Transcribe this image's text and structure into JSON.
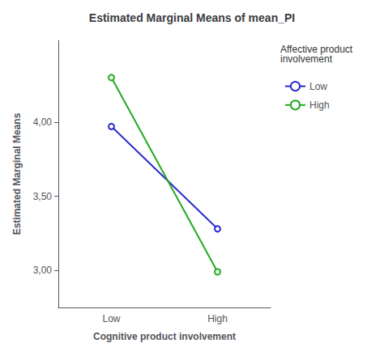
{
  "chart_data": {
    "type": "line",
    "title": "Estimated Marginal Means of mean_PI",
    "x_label": "Cognitive product involvement",
    "y_label": "Estimated Marginal Means",
    "categories": [
      "Low",
      "High"
    ],
    "series": [
      {
        "name": "Low",
        "color": "#2b2bcc",
        "values": [
          3.97,
          3.28
        ]
      },
      {
        "name": "High",
        "color": "#22aa22",
        "values": [
          4.3,
          2.99
        ]
      }
    ],
    "ylim": [
      2.75,
      4.55
    ],
    "yticks": [
      {
        "value": 3.0,
        "label": "3,00"
      },
      {
        "value": 3.5,
        "label": "3,50"
      },
      {
        "value": 4.0,
        "label": "4,00"
      }
    ],
    "legend_title": "Affective product involvement",
    "legend": "right",
    "marker": "circle",
    "grid": false
  }
}
